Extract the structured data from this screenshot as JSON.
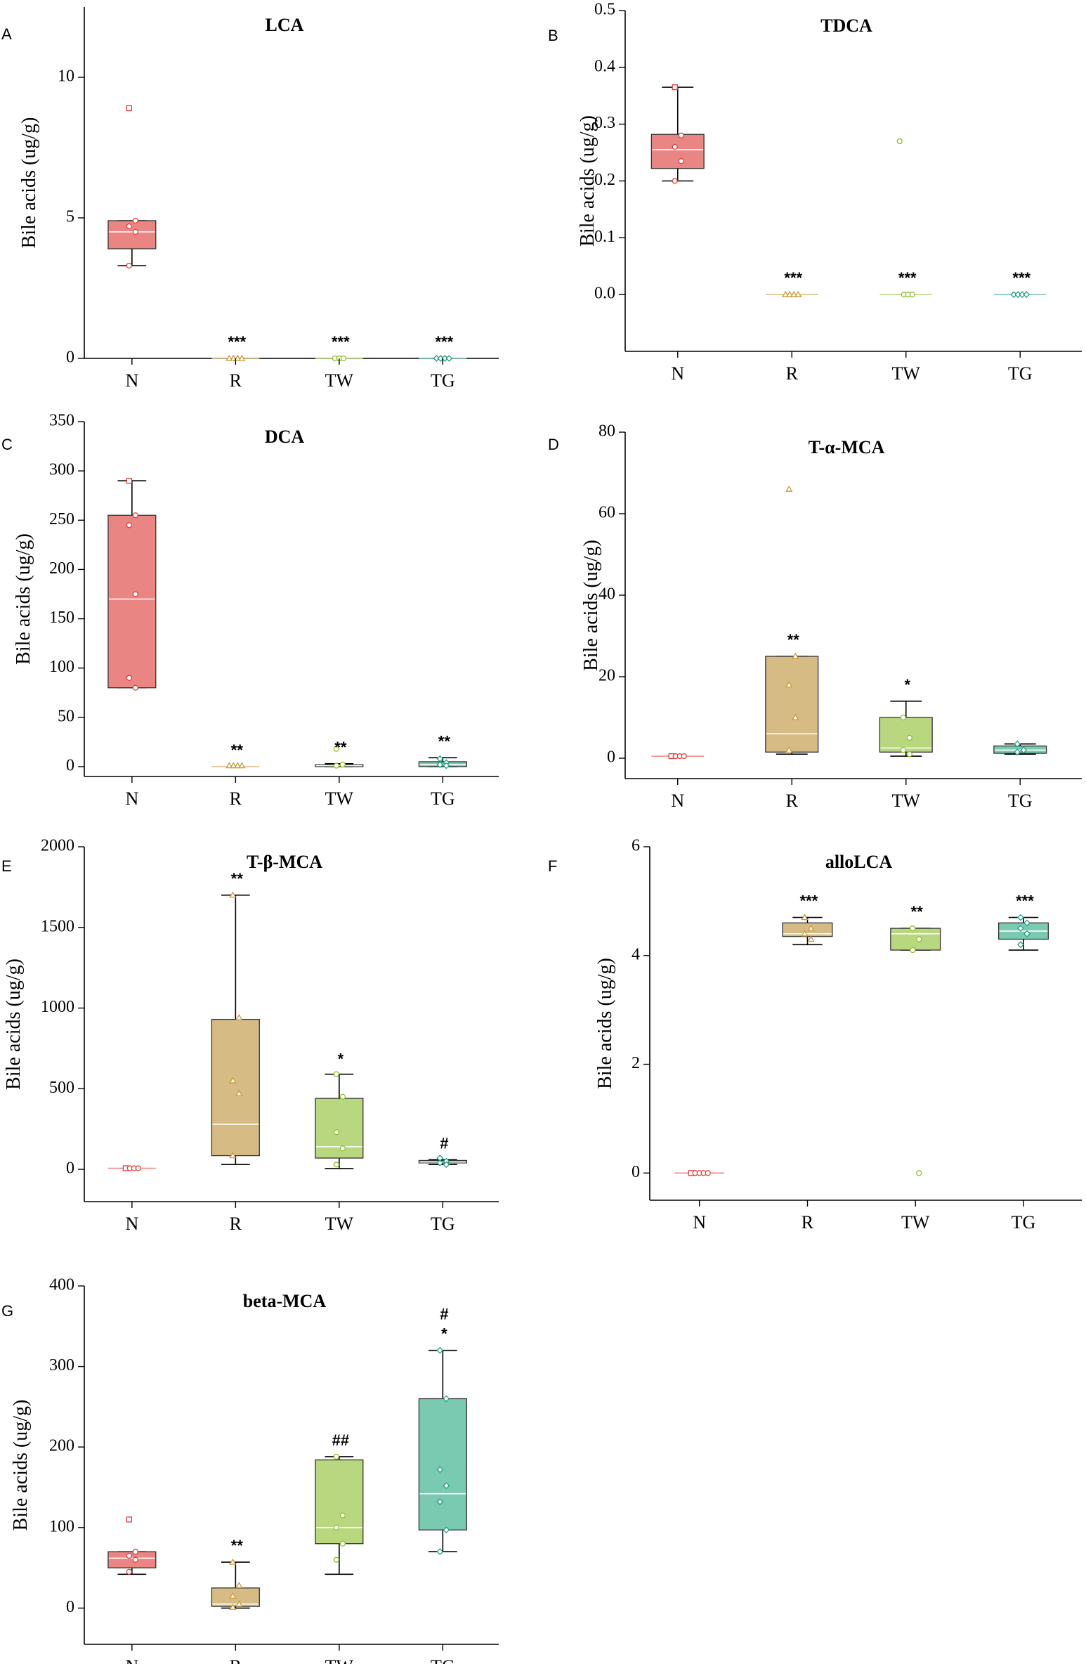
{
  "figure": {
    "categories": [
      "N",
      "R",
      "TW",
      "TG"
    ],
    "colors": {
      "N": "#e98583",
      "R": "#d7bb85",
      "TW": "#b9d77f",
      "TG": "#7ac9b1"
    },
    "point_colors": {
      "N": "#e23d3d",
      "R": "#c79a35",
      "TW": "#8cbf2a",
      "TG": "#1f9e86"
    },
    "median_color": "#ffffff"
  },
  "chart_data": [
    {
      "type": "box",
      "panel": "A",
      "title": "LCA",
      "ylabel": "Bile acids (ug/g)",
      "ylim": [
        0,
        12.5
      ],
      "yticks": [
        0,
        5,
        10
      ],
      "ytick_labels": [
        "0",
        "5",
        "10"
      ],
      "categories": [
        "N",
        "R",
        "TW",
        "TG"
      ],
      "boxes": [
        {
          "cat": "N",
          "min": 3.3,
          "q1": 3.9,
          "median": 4.5,
          "q3": 4.9,
          "max": 4.9,
          "points": [
            8.9,
            4.9,
            4.7,
            4.5,
            3.3
          ]
        },
        {
          "cat": "R",
          "min": 0,
          "q1": 0,
          "median": 0,
          "q3": 0,
          "max": 0,
          "points": [
            0,
            0,
            0,
            0
          ]
        },
        {
          "cat": "TW",
          "min": 0,
          "q1": 0,
          "median": 0,
          "q3": 0,
          "max": 0,
          "points": [
            0,
            0,
            0
          ]
        },
        {
          "cat": "TG",
          "min": 0,
          "q1": 0,
          "median": 0,
          "q3": 0,
          "max": 0,
          "points": [
            0,
            0,
            0,
            0
          ]
        }
      ],
      "annotations": [
        "",
        "***",
        "***",
        "***"
      ]
    },
    {
      "type": "box",
      "panel": "B",
      "title": "TDCA",
      "ylabel": "Bile acids (ug/g)",
      "ylim": [
        -0.1,
        0.5
      ],
      "yticks": [
        0,
        0.1,
        0.2,
        0.3,
        0.4,
        0.5
      ],
      "ytick_labels": [
        "0.0",
        "0.1",
        "0.2",
        "0.3",
        "0.4",
        "0.5"
      ],
      "categories": [
        "N",
        "R",
        "TW",
        "TG"
      ],
      "boxes": [
        {
          "cat": "N",
          "min": 0.2,
          "q1": 0.222,
          "median": 0.255,
          "q3": 0.282,
          "max": 0.365,
          "points": [
            0.365,
            0.28,
            0.26,
            0.235,
            0.2
          ]
        },
        {
          "cat": "R",
          "min": 0,
          "q1": 0,
          "median": 0,
          "q3": 0,
          "max": 0,
          "points": [
            0,
            0,
            0,
            0
          ]
        },
        {
          "cat": "TW",
          "min": 0,
          "q1": 0,
          "median": 0,
          "q3": 0,
          "max": 0,
          "points": [
            0.27,
            0,
            0,
            0
          ]
        },
        {
          "cat": "TG",
          "min": 0,
          "q1": 0,
          "median": 0,
          "q3": 0,
          "max": 0,
          "points": [
            0,
            0,
            0,
            0
          ]
        }
      ],
      "annotations": [
        "",
        "***",
        "***",
        "***"
      ]
    },
    {
      "type": "box",
      "panel": "C",
      "title": "DCA",
      "ylabel": "Bile acids (ug/g)",
      "ylim": [
        -10,
        350
      ],
      "yticks": [
        0,
        50,
        100,
        150,
        200,
        250,
        300,
        350
      ],
      "ytick_labels": [
        "0",
        "50",
        "100",
        "150",
        "200",
        "250",
        "300",
        "350"
      ],
      "categories": [
        "N",
        "R",
        "TW",
        "TG"
      ],
      "boxes": [
        {
          "cat": "N",
          "min": 80,
          "q1": 80,
          "median": 170,
          "q3": 255,
          "max": 290,
          "points": [
            290,
            255,
            245,
            175,
            90,
            80
          ]
        },
        {
          "cat": "R",
          "min": 0,
          "q1": 0,
          "median": 0,
          "q3": 0,
          "max": 0,
          "points": [
            1,
            1,
            1,
            1
          ]
        },
        {
          "cat": "TW",
          "min": 0,
          "q1": 0,
          "median": 1,
          "q3": 2,
          "max": 3,
          "points": [
            18,
            2,
            1
          ]
        },
        {
          "cat": "TG",
          "min": 0,
          "q1": 0,
          "median": 2,
          "q3": 5,
          "max": 9,
          "points": [
            8,
            4,
            2,
            1
          ]
        }
      ],
      "annotations": [
        "",
        "**",
        "**",
        "**"
      ]
    },
    {
      "type": "box",
      "panel": "D",
      "title": "T-α-MCA",
      "ylabel": "Bile acids (ug/g)",
      "ylim": [
        -5,
        80
      ],
      "yticks": [
        0,
        20,
        40,
        60,
        80
      ],
      "ytick_labels": [
        "0",
        "20",
        "40",
        "60",
        "80"
      ],
      "categories": [
        "N",
        "R",
        "TW",
        "TG"
      ],
      "boxes": [
        {
          "cat": "N",
          "min": 0.3,
          "q1": 0.4,
          "median": 0.5,
          "q3": 0.6,
          "max": 0.7,
          "points": [
            0.5,
            0.5,
            0.5,
            0.5
          ]
        },
        {
          "cat": "R",
          "min": 1,
          "q1": 1.5,
          "median": 6,
          "q3": 25,
          "max": 25,
          "points": [
            66,
            25,
            18,
            10,
            2
          ]
        },
        {
          "cat": "TW",
          "min": 0.5,
          "q1": 1.5,
          "median": 2.5,
          "q3": 10,
          "max": 14,
          "points": [
            10,
            5,
            2,
            1
          ]
        },
        {
          "cat": "TG",
          "min": 1,
          "q1": 1.2,
          "median": 2,
          "q3": 3,
          "max": 3.5,
          "points": [
            3.5,
            2,
            1.5
          ]
        }
      ],
      "annotations": [
        "",
        "**",
        "*",
        ""
      ]
    },
    {
      "type": "box",
      "panel": "E",
      "title": "T-β-MCA",
      "ylabel": "Bile acids (ug/g)",
      "ylim": [
        -200,
        2000
      ],
      "yticks": [
        0,
        500,
        1000,
        1500,
        2000
      ],
      "ytick_labels": [
        "0",
        "500",
        "1000",
        "1500",
        "2000"
      ],
      "categories": [
        "N",
        "R",
        "TW",
        "TG"
      ],
      "boxes": [
        {
          "cat": "N",
          "min": 5,
          "q1": 6,
          "median": 7,
          "q3": 8,
          "max": 10,
          "points": [
            7,
            7,
            7,
            7
          ]
        },
        {
          "cat": "R",
          "min": 30,
          "q1": 85,
          "median": 280,
          "q3": 930,
          "max": 1700,
          "points": [
            1700,
            940,
            550,
            470,
            85
          ]
        },
        {
          "cat": "TW",
          "min": 5,
          "q1": 70,
          "median": 140,
          "q3": 440,
          "max": 590,
          "points": [
            590,
            450,
            230,
            130,
            30
          ]
        },
        {
          "cat": "TG",
          "min": 30,
          "q1": 40,
          "median": 45,
          "q3": 55,
          "max": 60,
          "points": [
            70,
            50,
            40,
            30
          ]
        }
      ],
      "annotations": [
        "",
        "**",
        "*",
        "#"
      ]
    },
    {
      "type": "box",
      "panel": "F",
      "title": "alloLCA",
      "ylabel": "Bile acids (ug/g)",
      "ylim": [
        -0.5,
        6
      ],
      "yticks": [
        0,
        2,
        4,
        6
      ],
      "ytick_labels": [
        "0",
        "2",
        "4",
        "6"
      ],
      "categories": [
        "N",
        "R",
        "TW",
        "TG"
      ],
      "boxes": [
        {
          "cat": "N",
          "min": 0,
          "q1": 0,
          "median": 0,
          "q3": 0,
          "max": 0,
          "points": [
            0,
            0,
            0,
            0,
            0
          ]
        },
        {
          "cat": "R",
          "min": 4.2,
          "q1": 4.35,
          "median": 4.4,
          "q3": 4.6,
          "max": 4.7,
          "points": [
            4.7,
            4.5,
            4.4,
            4.3
          ]
        },
        {
          "cat": "TW",
          "min": 4.1,
          "q1": 4.1,
          "median": 4.4,
          "q3": 4.5,
          "max": 4.5,
          "points": [
            4.5,
            4.3,
            4.1,
            0
          ]
        },
        {
          "cat": "TG",
          "min": 4.1,
          "q1": 4.3,
          "median": 4.45,
          "q3": 4.6,
          "max": 4.7,
          "points": [
            4.7,
            4.6,
            4.5,
            4.4,
            4.2
          ]
        }
      ],
      "annotations": [
        "",
        "***",
        "**",
        "***"
      ]
    },
    {
      "type": "box",
      "panel": "G",
      "title": "beta-MCA",
      "ylabel": "Bile acids (ug/g)",
      "ylim": [
        -45,
        400
      ],
      "yticks": [
        0,
        100,
        200,
        300,
        400
      ],
      "ytick_labels": [
        "0",
        "100",
        "200",
        "300",
        "400"
      ],
      "categories": [
        "N",
        "R",
        "TW",
        "TG"
      ],
      "boxes": [
        {
          "cat": "N",
          "min": 42,
          "q1": 50,
          "median": 62,
          "q3": 70,
          "max": 70,
          "points": [
            110,
            70,
            65,
            60,
            45
          ]
        },
        {
          "cat": "R",
          "min": 0,
          "q1": 2,
          "median": 5,
          "q3": 25,
          "max": 57,
          "points": [
            57,
            28,
            15,
            5,
            1
          ]
        },
        {
          "cat": "TW",
          "min": 42,
          "q1": 80,
          "median": 100,
          "q3": 184,
          "max": 188,
          "points": [
            188,
            115,
            100,
            80,
            60
          ]
        },
        {
          "cat": "TG",
          "min": 70,
          "q1": 97,
          "median": 142,
          "q3": 260,
          "max": 320,
          "points": [
            320,
            260,
            172,
            152,
            132,
            97,
            70
          ]
        }
      ],
      "annotations": [
        "",
        "**",
        "##",
        "*"
      ],
      "annotations_extra": [
        "",
        "",
        "",
        "#"
      ]
    }
  ]
}
